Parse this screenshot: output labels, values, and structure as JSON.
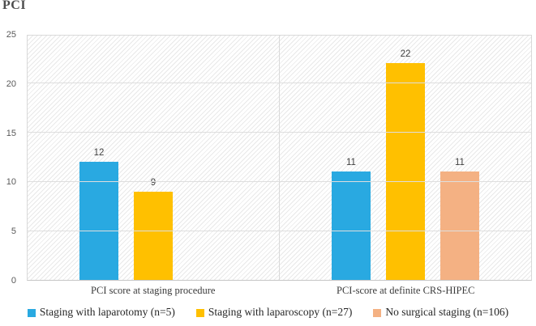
{
  "title": "PCI",
  "colors": {
    "laparotomy_blue": "#29A9E1",
    "laparoscopy_gold": "#FFC000",
    "no_staging_peach": "#F4B183",
    "gridline": "#D9D9D9",
    "axis_text": "#595959",
    "value_label_text": "#404040"
  },
  "chart_data": {
    "type": "bar",
    "title": "PCI",
    "categories": [
      "PCI score at staging procedure",
      "PCI-score at definite CRS-HIPEC"
    ],
    "series": [
      {
        "name": "Staging with laparotomy (n=5)",
        "color": "#29A9E1",
        "values": [
          12,
          11
        ]
      },
      {
        "name": "Staging with laparoscopy (n=27)",
        "color": "#FFC000",
        "values": [
          9,
          22
        ]
      },
      {
        "name": "No surgical staging (n=106)",
        "color": "#F4B183",
        "values": [
          null,
          11
        ]
      }
    ],
    "ylim": [
      0,
      25
    ],
    "yticks": [
      0,
      5,
      10,
      15,
      20,
      25
    ],
    "grid": true,
    "background_hatch": "diagonal",
    "legend_position": "bottom",
    "data_labels": true
  }
}
